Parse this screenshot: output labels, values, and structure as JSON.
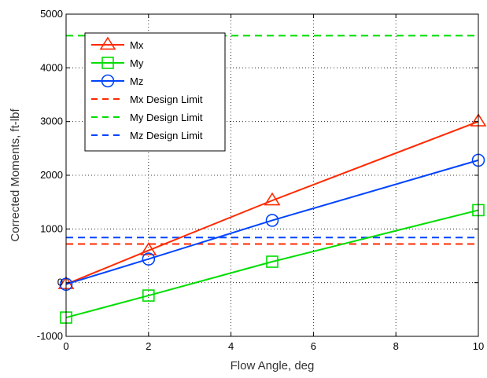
{
  "chart_data": {
    "type": "line",
    "title": "",
    "xlabel": "Flow Angle, deg",
    "ylabel": "Corrected Moments, ft-lbf",
    "xlim": [
      0,
      10
    ],
    "ylim": [
      -1000,
      5000
    ],
    "xticks": [
      0,
      2,
      4,
      6,
      8,
      10
    ],
    "yticks": [
      -1000,
      0,
      1000,
      2000,
      3000,
      4000,
      5000
    ],
    "grid": true,
    "legend_position": "top-left",
    "x": [
      0,
      2,
      5,
      10
    ],
    "series": [
      {
        "name": "Mx",
        "values": [
          -30,
          600,
          1530,
          3000
        ],
        "color": "#ff2a00",
        "marker": "triangle"
      },
      {
        "name": "My",
        "values": [
          -650,
          -240,
          390,
          1350
        ],
        "color": "#00dd00",
        "marker": "square"
      },
      {
        "name": "Mz",
        "values": [
          -30,
          440,
          1160,
          2280
        ],
        "color": "#0044ff",
        "marker": "circle"
      }
    ],
    "limits": [
      {
        "name": "Mx Design Limit",
        "value": 720,
        "color": "#ff2a00"
      },
      {
        "name": "My Design Limit",
        "value": 4600,
        "color": "#00dd00"
      },
      {
        "name": "Mz Design Limit",
        "value": 840,
        "color": "#0044ff"
      }
    ]
  }
}
